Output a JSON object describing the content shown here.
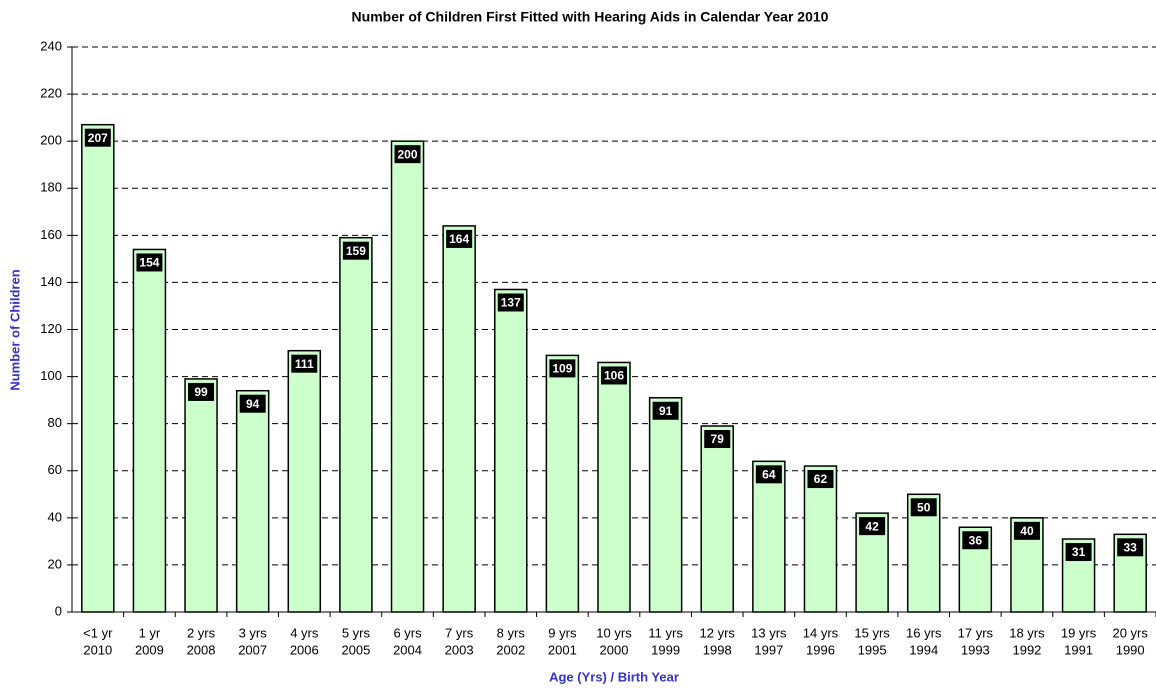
{
  "chart_data": {
    "type": "bar",
    "title": "Number of Children First Fitted with Hearing Aids in Calendar Year 2010",
    "x_label": "Age (Yrs) / Birth Year",
    "y_label": "Number of Children",
    "categories": [
      [
        "<1 yr",
        "2010"
      ],
      [
        "1 yr",
        "2009"
      ],
      [
        "2 yrs",
        "2008"
      ],
      [
        "3 yrs",
        "2007"
      ],
      [
        "4 yrs",
        "2006"
      ],
      [
        "5 yrs",
        "2005"
      ],
      [
        "6 yrs",
        "2004"
      ],
      [
        "7 yrs",
        "2003"
      ],
      [
        "8 yrs",
        "2002"
      ],
      [
        "9 yrs",
        "2001"
      ],
      [
        "10 yrs",
        "2000"
      ],
      [
        "11 yrs",
        "1999"
      ],
      [
        "12 yrs",
        "1998"
      ],
      [
        "13 yrs",
        "1997"
      ],
      [
        "14 yrs",
        "1996"
      ],
      [
        "15 yrs",
        "1995"
      ],
      [
        "16 yrs",
        "1994"
      ],
      [
        "17 yrs",
        "1993"
      ],
      [
        "18 yrs",
        "1992"
      ],
      [
        "19 yrs",
        "1991"
      ],
      [
        "20 yrs",
        "1990"
      ]
    ],
    "values": [
      207,
      154,
      99,
      94,
      111,
      159,
      200,
      164,
      137,
      109,
      106,
      91,
      79,
      64,
      62,
      42,
      50,
      36,
      40,
      31,
      33
    ],
    "color": "#ccffcc",
    "ylim": [
      0,
      240
    ],
    "yticks": [
      0,
      20,
      40,
      60,
      80,
      100,
      120,
      140,
      160,
      180,
      200,
      220,
      240
    ],
    "grid": true
  }
}
